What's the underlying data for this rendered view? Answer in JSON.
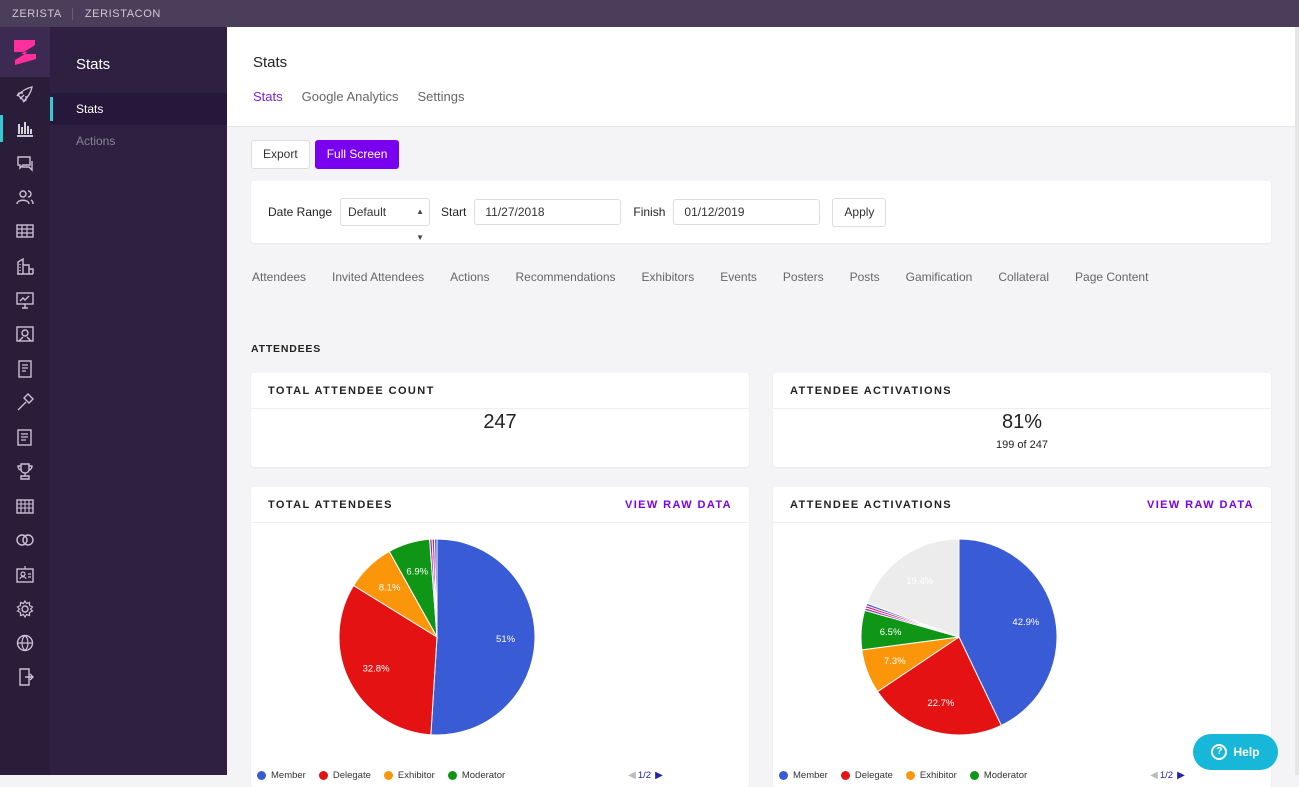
{
  "topbar": {
    "org": "ZERISTA",
    "event": "ZERISTACON"
  },
  "rail_icons": [
    "rocket-icon",
    "bar-chart-icon",
    "chat-icon",
    "users-icon",
    "table-icon",
    "building-icon",
    "presentation-icon",
    "gallery-icon",
    "document-icon",
    "hammer-icon",
    "news-icon",
    "trophy-icon",
    "calendar-grid-icon",
    "rings-icon",
    "badge-icon",
    "gear-icon",
    "globe-icon",
    "exit-icon"
  ],
  "subnav": {
    "title": "Stats",
    "items": [
      {
        "label": "Stats"
      },
      {
        "label": "Actions"
      }
    ]
  },
  "page": {
    "title": "Stats",
    "tabs": [
      "Stats",
      "Google Analytics",
      "Settings"
    ]
  },
  "buttons": {
    "export": "Export",
    "fullscreen": "Full Screen"
  },
  "filter": {
    "date_range_label": "Date Range",
    "date_range_value": "Default",
    "start_label": "Start",
    "start_value": "11/27/2018",
    "finish_label": "Finish",
    "finish_value": "01/12/2019",
    "apply": "Apply"
  },
  "section_tabs": [
    "Attendees",
    "Invited Attendees",
    "Actions",
    "Recommendations",
    "Exhibitors",
    "Events",
    "Posters",
    "Posts",
    "Gamification",
    "Collateral",
    "Page Content"
  ],
  "section_heading": "ATTENDEES",
  "card_total_count": {
    "title": "TOTAL ATTENDEE COUNT",
    "value": "247"
  },
  "card_activations": {
    "title": "ATTENDEE ACTIVATIONS",
    "value": "81%",
    "sub": "199 of 247"
  },
  "view_raw": "VIEW RAW DATA",
  "colors": {
    "member": "#3a5bd6",
    "delegate": "#e41212",
    "exhibitor": "#fb960a",
    "moderator": "#0f9616",
    "other": "#ececec",
    "accent": "#7a00f0"
  },
  "chart_data": [
    {
      "type": "pie",
      "title": "TOTAL ATTENDEES",
      "legend": [
        "Member",
        "Delegate",
        "Exhibitor",
        "Moderator"
      ],
      "pager": "1/2",
      "slices": [
        {
          "name": "Member",
          "value": 51,
          "label": "51%",
          "color": "#3a5bd6"
        },
        {
          "name": "Delegate",
          "value": 32.8,
          "label": "32.8%",
          "color": "#e41212"
        },
        {
          "name": "Exhibitor",
          "value": 8.1,
          "label": "8.1%",
          "color": "#fb960a"
        },
        {
          "name": "Moderator",
          "value": 6.9,
          "label": "6.9%",
          "color": "#0f9616"
        },
        {
          "name": "",
          "value": 0.4,
          "label": "",
          "color": "#9c27b0"
        },
        {
          "name": "",
          "value": 0.4,
          "label": "",
          "color": "#e91e63"
        },
        {
          "name": "",
          "value": 0.4,
          "label": "",
          "color": "#3a5bd6"
        }
      ]
    },
    {
      "type": "pie",
      "title": "ATTENDEE ACTIVATIONS",
      "legend": [
        "Member",
        "Delegate",
        "Exhibitor",
        "Moderator"
      ],
      "pager": "1/2",
      "slices": [
        {
          "name": "Member",
          "value": 42.9,
          "label": "42.9%",
          "color": "#3a5bd6"
        },
        {
          "name": "Delegate",
          "value": 22.7,
          "label": "22.7%",
          "color": "#e41212"
        },
        {
          "name": "Exhibitor",
          "value": 7.3,
          "label": "7.3%",
          "color": "#fb960a"
        },
        {
          "name": "Moderator",
          "value": 6.5,
          "label": "6.5%",
          "color": "#0f9616"
        },
        {
          "name": "",
          "value": 0.4,
          "label": "",
          "color": "#9c27b0"
        },
        {
          "name": "",
          "value": 0.4,
          "label": "",
          "color": "#e91e63"
        },
        {
          "name": "",
          "value": 0.4,
          "label": "",
          "color": "#3a5bd6"
        },
        {
          "name": "",
          "value": 19.4,
          "label": "19.4%",
          "color": "#ececec"
        }
      ]
    }
  ],
  "help": "Help"
}
